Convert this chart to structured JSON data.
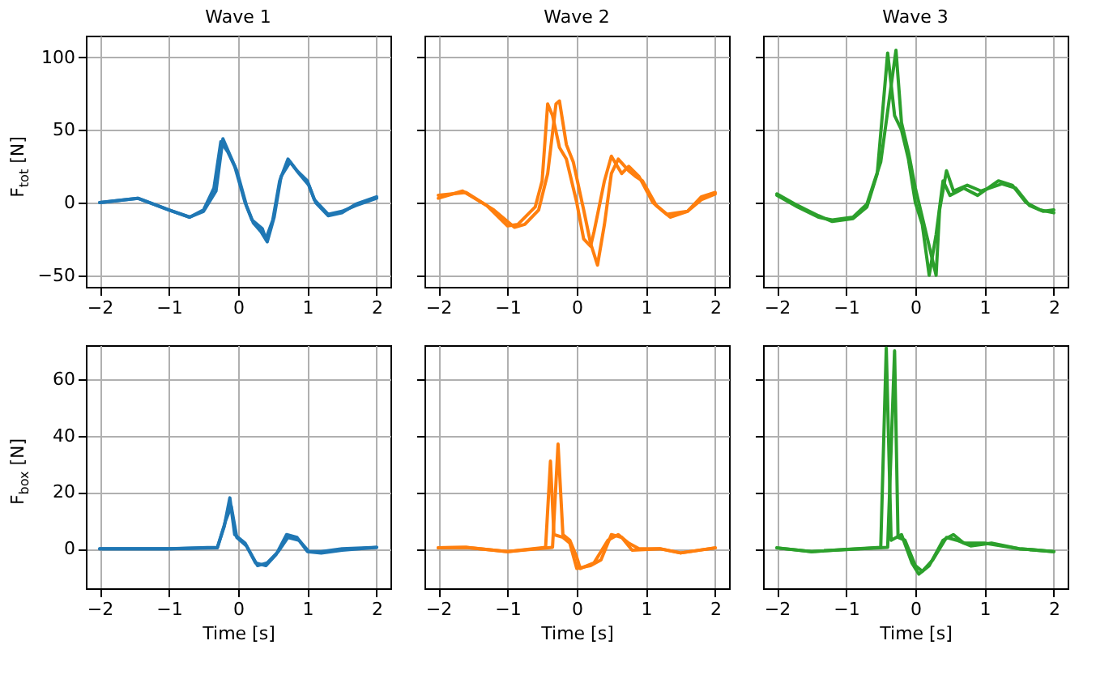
{
  "chart_data": [
    {
      "type": "line",
      "title": "Wave 1",
      "ylabel": "F$_{tot}$ [N]",
      "xlim": [
        -2.2,
        2.2
      ],
      "xticks": [
        -2,
        -1,
        0,
        1,
        2
      ],
      "ylim": [
        -58,
        115
      ],
      "yticks": [
        -50,
        0,
        50,
        100
      ],
      "grid": true,
      "tick_labels": "xy",
      "series": [
        {
          "color": "#1f77b4",
          "x": [
            -2,
            -1.45,
            -1,
            -0.7,
            -0.5,
            -0.35,
            -0.25,
            -0.15,
            -0.05,
            0.1,
            0.2,
            0.35,
            0.4,
            0.5,
            0.6,
            0.72,
            0.85,
            1.0,
            1.1,
            1.3,
            1.5,
            1.7,
            2
          ],
          "values": [
            0,
            3,
            -5,
            -10,
            -5,
            10,
            42,
            35,
            25,
            0,
            -12,
            -18,
            -25,
            -12,
            15,
            30,
            22,
            15,
            2,
            -8,
            -6,
            -2,
            3
          ]
        },
        {
          "color": "#1f77b4",
          "x": [
            -2,
            -1.45,
            -1,
            -0.7,
            -0.5,
            -0.32,
            -0.22,
            -0.12,
            -0.02,
            0.12,
            0.22,
            0.33,
            0.42,
            0.52,
            0.62,
            0.75,
            0.88,
            1.02,
            1.12,
            1.3,
            1.5,
            1.7,
            2
          ],
          "values": [
            0,
            3,
            -5,
            -10,
            -6,
            8,
            44,
            33,
            22,
            -2,
            -14,
            -20,
            -27,
            -10,
            18,
            28,
            20,
            12,
            0,
            -9,
            -7,
            -1,
            4
          ]
        }
      ]
    },
    {
      "type": "line",
      "title": "Wave 2",
      "xlim": [
        -2.2,
        2.2
      ],
      "xticks": [
        -2,
        -1,
        0,
        1,
        2
      ],
      "ylim": [
        -58,
        115
      ],
      "yticks": [
        -50,
        0,
        50,
        100
      ],
      "grid": true,
      "tick_labels": "x",
      "series": [
        {
          "color": "#ff7f0e",
          "x": [
            -2,
            -1.65,
            -1.3,
            -1,
            -0.85,
            -0.6,
            -0.5,
            -0.42,
            -0.35,
            -0.25,
            -0.15,
            0,
            0.1,
            0.2,
            0.25,
            0.4,
            0.5,
            0.65,
            0.75,
            0.9,
            1.1,
            1.3,
            1.6,
            1.8,
            2
          ],
          "values": [
            3,
            8,
            -2,
            -16,
            -15,
            -3,
            15,
            68,
            60,
            38,
            30,
            0,
            -25,
            -30,
            -20,
            15,
            32,
            20,
            25,
            18,
            0,
            -8,
            -6,
            2,
            6
          ]
        },
        {
          "color": "#ff7f0e",
          "x": [
            -2,
            -1.6,
            -1.2,
            -0.9,
            -0.75,
            -0.55,
            -0.42,
            -0.3,
            -0.25,
            -0.15,
            -0.05,
            0.1,
            0.2,
            0.3,
            0.4,
            0.5,
            0.6,
            0.75,
            0.85,
            0.95,
            1.15,
            1.35,
            1.6,
            1.8,
            2
          ],
          "values": [
            5,
            7,
            -5,
            -17,
            -15,
            -5,
            20,
            68,
            70,
            40,
            28,
            -5,
            -28,
            -43,
            -15,
            20,
            30,
            22,
            18,
            15,
            -2,
            -10,
            -6,
            4,
            7
          ]
        }
      ]
    },
    {
      "type": "line",
      "title": "Wave 3",
      "xlim": [
        -2.2,
        2.2
      ],
      "xticks": [
        -2,
        -1,
        0,
        1,
        2
      ],
      "ylim": [
        -58,
        115
      ],
      "yticks": [
        -50,
        0,
        50,
        100
      ],
      "grid": true,
      "tick_labels": "x",
      "series": [
        {
          "color": "#2ca02c",
          "x": [
            -2,
            -1.7,
            -1.4,
            -1.2,
            -0.9,
            -0.7,
            -0.55,
            -0.4,
            -0.3,
            -0.2,
            -0.1,
            0,
            0.1,
            0.2,
            0.3,
            0.4,
            0.5,
            0.7,
            0.9,
            1.2,
            1.4,
            1.6,
            1.8,
            2
          ],
          "values": [
            6,
            -2,
            -9,
            -13,
            -11,
            -3,
            20,
            103,
            60,
            50,
            30,
            0,
            -15,
            -50,
            -22,
            15,
            5,
            10,
            5,
            15,
            12,
            0,
            -5,
            -7
          ]
        },
        {
          "color": "#2ca02c",
          "x": [
            -2,
            -1.7,
            -1.4,
            -1.2,
            -0.9,
            -0.7,
            -0.5,
            -0.28,
            -0.2,
            -0.1,
            0,
            0.1,
            0.2,
            0.3,
            0.35,
            0.45,
            0.55,
            0.75,
            0.95,
            1.25,
            1.45,
            1.65,
            1.85,
            2
          ],
          "values": [
            5,
            -3,
            -10,
            -12,
            -10,
            -1,
            28,
            105,
            55,
            35,
            10,
            -10,
            -30,
            -50,
            -5,
            22,
            8,
            12,
            8,
            13,
            10,
            -2,
            -6,
            -5
          ]
        }
      ]
    },
    {
      "type": "line",
      "ylabel": "F$_{box}$ [N]",
      "xlabel": "Time [s]",
      "xlim": [
        -2.2,
        2.2
      ],
      "xticks": [
        -2,
        -1,
        0,
        1,
        2
      ],
      "ylim": [
        -14,
        72
      ],
      "yticks": [
        0,
        20,
        40,
        60
      ],
      "grid": true,
      "tick_labels": "xy",
      "series": [
        {
          "color": "#1f77b4",
          "x": [
            -2,
            -1,
            -0.3,
            -0.2,
            -0.12,
            -0.05,
            0.1,
            0.25,
            0.4,
            0.55,
            0.7,
            0.85,
            1.0,
            1.2,
            1.5,
            2
          ],
          "values": [
            0,
            0,
            0.5,
            8,
            18,
            5,
            2,
            -5,
            -6,
            -2,
            5,
            4,
            -1,
            -1.5,
            -0.5,
            0.5
          ]
        },
        {
          "color": "#1f77b4",
          "x": [
            -2,
            -1,
            -0.3,
            -0.18,
            -0.1,
            -0.02,
            0.12,
            0.28,
            0.42,
            0.58,
            0.72,
            0.88,
            1.02,
            1.2,
            1.5,
            2
          ],
          "values": [
            0,
            0,
            0.3,
            10,
            15,
            4,
            1,
            -6,
            -5,
            -1,
            4,
            3,
            -1,
            -1,
            0,
            0.5
          ]
        }
      ]
    },
    {
      "type": "line",
      "xlabel": "Time [s]",
      "xlim": [
        -2.2,
        2.2
      ],
      "xticks": [
        -2,
        -1,
        0,
        1,
        2
      ],
      "ylim": [
        -14,
        72
      ],
      "yticks": [
        0,
        20,
        40,
        60
      ],
      "grid": true,
      "tick_labels": "x",
      "series": [
        {
          "color": "#ff7f0e",
          "x": [
            -2,
            -1.6,
            -1,
            -0.45,
            -0.38,
            -0.33,
            -0.2,
            -0.1,
            0,
            0.2,
            0.35,
            0.5,
            0.65,
            0.8,
            1.2,
            1.5,
            2
          ],
          "values": [
            0.3,
            0.5,
            -1,
            0.5,
            31,
            5,
            4,
            2,
            -7,
            -6,
            -4,
            5,
            4,
            -0.5,
            0,
            -1.5,
            0.3
          ]
        },
        {
          "color": "#ff7f0e",
          "x": [
            -2,
            -1.6,
            -1,
            -0.35,
            -0.27,
            -0.2,
            -0.1,
            0,
            0.05,
            0.25,
            0.45,
            0.6,
            0.75,
            0.9,
            1.2,
            1.5,
            2
          ],
          "values": [
            0.3,
            0.5,
            -1,
            0.5,
            37,
            5,
            3,
            -3,
            -7,
            -5,
            3,
            5,
            2,
            0,
            0,
            -1.5,
            0.3
          ]
        }
      ]
    },
    {
      "type": "line",
      "xlabel": "Time [s]",
      "xlim": [
        -2.2,
        2.2
      ],
      "xticks": [
        -2,
        -1,
        0,
        1,
        2
      ],
      "ylim": [
        -14,
        72
      ],
      "yticks": [
        0,
        20,
        40,
        60
      ],
      "grid": true,
      "tick_labels": "x",
      "series": [
        {
          "color": "#2ca02c",
          "x": [
            -2,
            -1.5,
            -0.5,
            -0.42,
            -0.35,
            -0.2,
            -0.05,
            0.05,
            0.2,
            0.4,
            0.55,
            0.7,
            1.0,
            1.5,
            2
          ],
          "values": [
            0.3,
            -1,
            0.5,
            71,
            3,
            5,
            -5,
            -9,
            -6,
            3,
            5,
            2,
            2,
            0,
            -1
          ]
        },
        {
          "color": "#2ca02c",
          "x": [
            -2,
            -1.5,
            -0.4,
            -0.3,
            -0.25,
            -0.15,
            0,
            0.1,
            0.25,
            0.45,
            0.6,
            0.8,
            1.1,
            1.5,
            2
          ],
          "values": [
            0.3,
            -1,
            0.5,
            70,
            4,
            3,
            -6,
            -8,
            -4,
            4,
            3,
            1,
            2,
            0,
            -1
          ]
        }
      ]
    }
  ]
}
